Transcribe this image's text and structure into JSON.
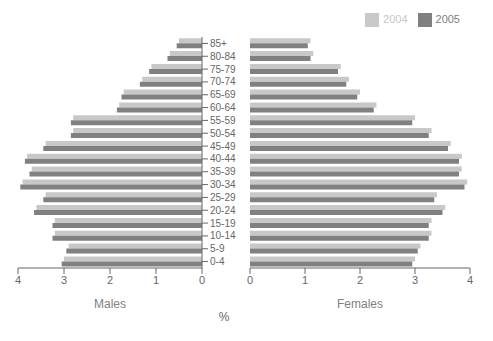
{
  "chart_data": [
    {
      "type": "bar",
      "orientation": "horizontal",
      "xlabel": "Males",
      "annotations": [
        "%"
      ],
      "categories": [
        "0-4",
        "5-9",
        "10-14",
        "15-19",
        "20-24",
        "25-29",
        "30-34",
        "35-39",
        "40-44",
        "45-49",
        "50-54",
        "55-59",
        "60-64",
        "65-69",
        "70-74",
        "75-79",
        "80-84",
        "85+"
      ],
      "series": [
        {
          "name": "2004",
          "color": "#c8c8c8",
          "values": [
            3.0,
            2.9,
            3.2,
            3.2,
            3.6,
            3.4,
            3.9,
            3.7,
            3.8,
            3.4,
            2.8,
            2.8,
            1.8,
            1.7,
            1.3,
            1.1,
            0.7,
            0.5
          ]
        },
        {
          "name": "2005",
          "color": "#808080",
          "values": [
            3.05,
            2.95,
            3.25,
            3.25,
            3.65,
            3.45,
            3.95,
            3.75,
            3.85,
            3.45,
            2.85,
            2.85,
            1.85,
            1.75,
            1.35,
            1.15,
            0.75,
            0.55
          ]
        }
      ],
      "xlim": [
        4,
        0
      ],
      "xticks": [
        0,
        1,
        2,
        3,
        4
      ]
    },
    {
      "type": "bar",
      "orientation": "horizontal",
      "xlabel": "Females",
      "tick_labels": "x",
      "legend": "upper right",
      "categories": [
        "0-4",
        "5-9",
        "10-14",
        "15-19",
        "20-24",
        "25-29",
        "30-34",
        "35-39",
        "40-44",
        "45-49",
        "50-54",
        "55-59",
        "60-64",
        "65-69",
        "70-74",
        "75-79",
        "80-84",
        "85+"
      ],
      "series": [
        {
          "name": "2004",
          "color": "#c8c8c8",
          "values": [
            3.0,
            3.1,
            3.3,
            3.3,
            3.55,
            3.4,
            3.95,
            3.85,
            3.85,
            3.65,
            3.3,
            3.0,
            2.3,
            2.0,
            1.8,
            1.65,
            1.15,
            1.1
          ]
        },
        {
          "name": "2005",
          "color": "#808080",
          "values": [
            2.95,
            3.05,
            3.25,
            3.25,
            3.5,
            3.35,
            3.9,
            3.8,
            3.8,
            3.6,
            3.25,
            2.95,
            2.25,
            1.95,
            1.75,
            1.6,
            1.1,
            1.05
          ]
        }
      ],
      "xlim": [
        0,
        4
      ],
      "xticks": [
        0,
        1,
        2,
        3,
        4
      ]
    }
  ]
}
